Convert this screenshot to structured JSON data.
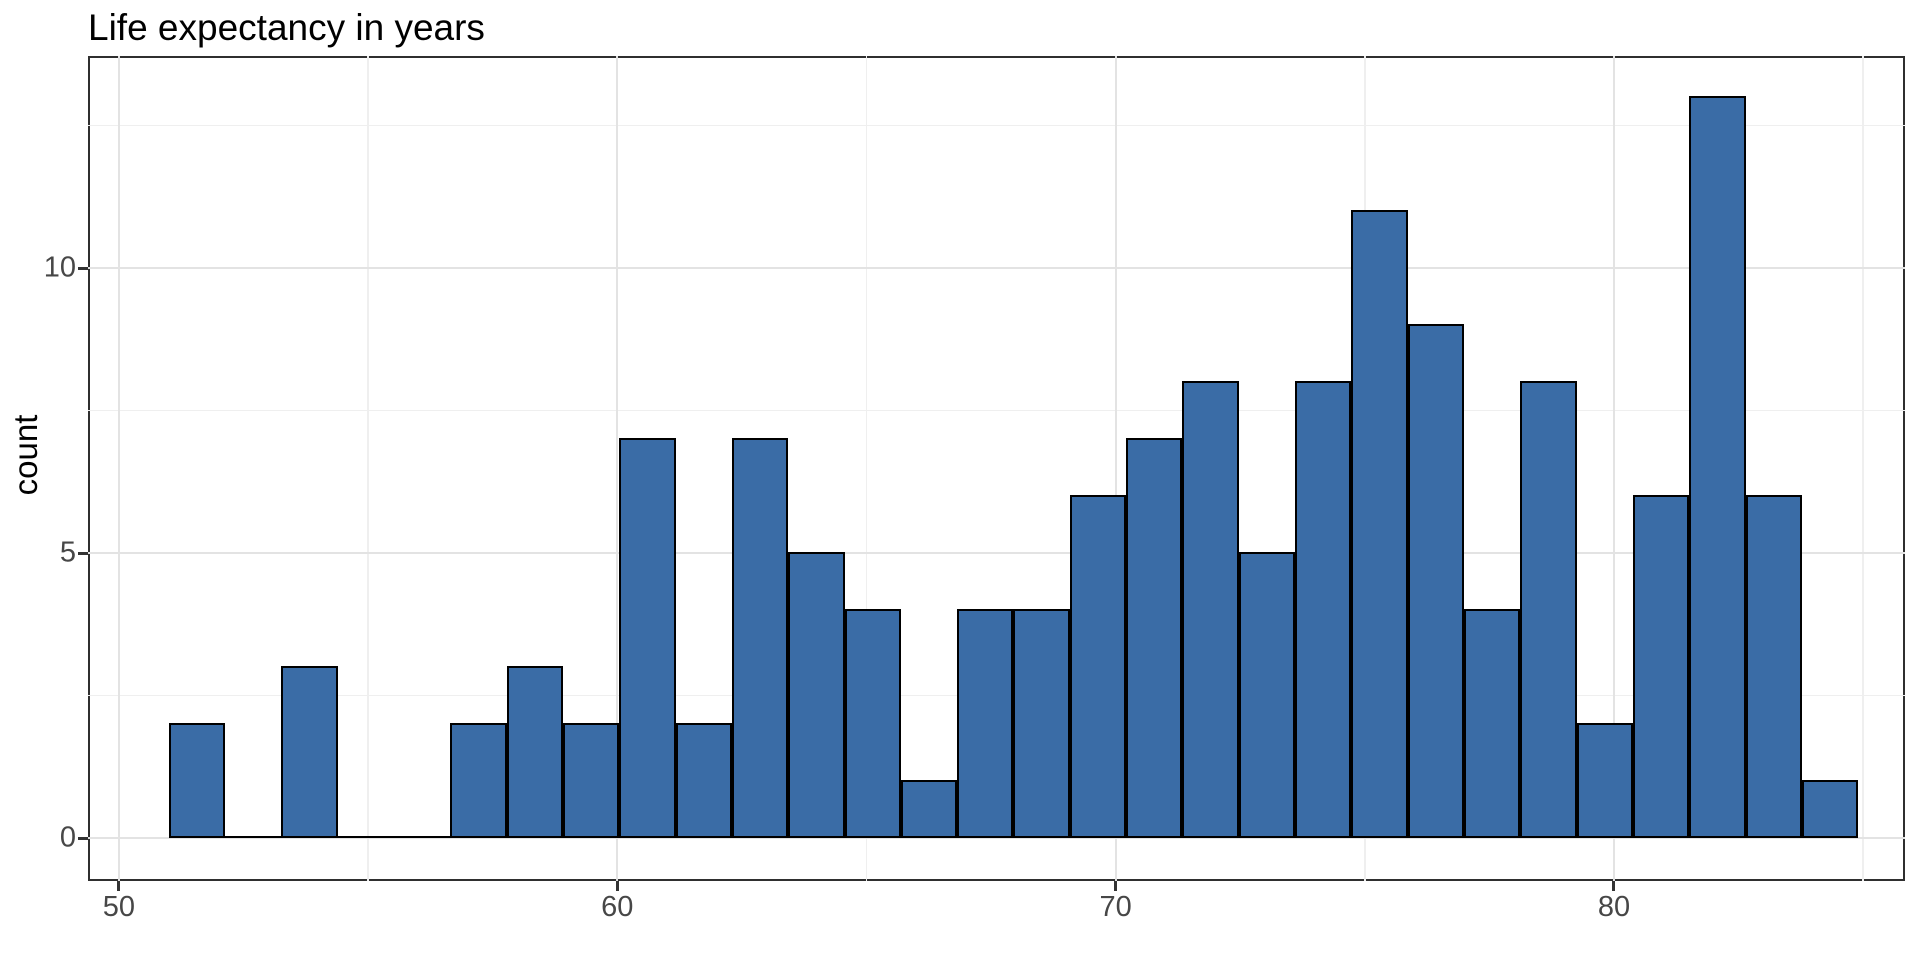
{
  "title": "Life expectancy in years",
  "axes": {
    "y_label": "count",
    "x_tick_labels": [
      "50",
      "60",
      "70",
      "80"
    ],
    "y_tick_labels": [
      "0",
      "5",
      "10"
    ]
  },
  "chart_data": {
    "type": "bar",
    "subtype": "histogram",
    "title": "Life expectancy in years",
    "xlabel": "",
    "ylabel": "count",
    "bin_start": 51.0,
    "bin_width": 1.13,
    "bin_count": 30,
    "counts": [
      2,
      0,
      3,
      0,
      0,
      2,
      3,
      2,
      7,
      2,
      7,
      5,
      4,
      1,
      4,
      4,
      6,
      7,
      8,
      5,
      8,
      11,
      9,
      4,
      8,
      2,
      6,
      13,
      6,
      1
    ],
    "n_total": 140,
    "x_ticks": [
      50,
      60,
      70,
      80
    ],
    "x_minor_ticks": [
      55,
      65,
      75,
      85
    ],
    "y_ticks": [
      0,
      5,
      10
    ],
    "y_minor_ticks": [
      2.5,
      7.5,
      12.5
    ],
    "xlim": [
      49.38,
      85.84
    ],
    "ylim": [
      -0.75,
      13.72
    ],
    "grid": true,
    "legend_position": "none",
    "colors": {
      "bar_fill": "#3a6ca6",
      "bar_stroke": "#000000",
      "grid_major": "#e3e3e3",
      "grid_minor": "#efefef",
      "panel_border": "#2f2f2f",
      "tick_mark": "#333333",
      "tick_text": "#474747",
      "title_text": "#000000",
      "background": "#ffffff"
    }
  }
}
